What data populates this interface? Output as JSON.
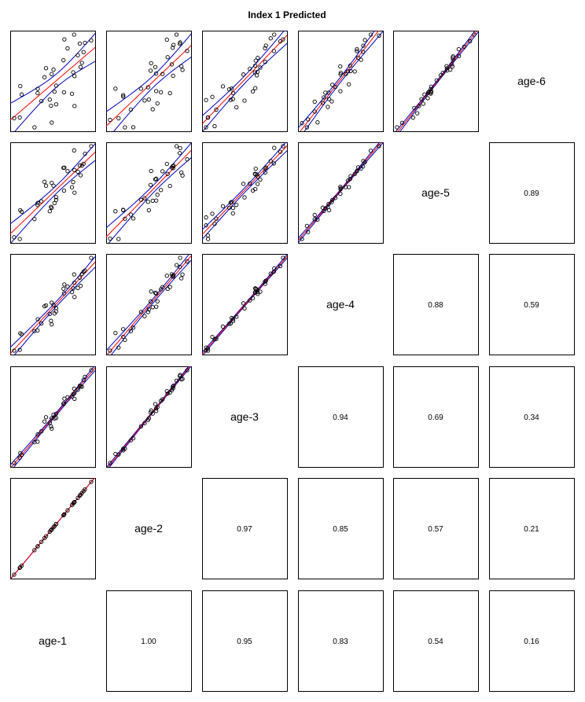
{
  "title": "Index 1 Predicted",
  "chart_data": {
    "type": "scatter",
    "title": "Index 1 Predicted",
    "variables": [
      "age-1",
      "age-2",
      "age-3",
      "age-4",
      "age-5",
      "age-6"
    ],
    "correlations": [
      {
        "row": "age-1",
        "col": "age-2",
        "value": "1.00"
      },
      {
        "row": "age-1",
        "col": "age-3",
        "value": "0.95"
      },
      {
        "row": "age-1",
        "col": "age-4",
        "value": "0.83"
      },
      {
        "row": "age-1",
        "col": "age-5",
        "value": "0.54"
      },
      {
        "row": "age-1",
        "col": "age-6",
        "value": "0.16"
      },
      {
        "row": "age-2",
        "col": "age-3",
        "value": "0.97"
      },
      {
        "row": "age-2",
        "col": "age-4",
        "value": "0.85"
      },
      {
        "row": "age-2",
        "col": "age-5",
        "value": "0.57"
      },
      {
        "row": "age-2",
        "col": "age-6",
        "value": "0.21"
      },
      {
        "row": "age-3",
        "col": "age-4",
        "value": "0.94"
      },
      {
        "row": "age-3",
        "col": "age-5",
        "value": "0.69"
      },
      {
        "row": "age-3",
        "col": "age-6",
        "value": "0.34"
      },
      {
        "row": "age-4",
        "col": "age-5",
        "value": "0.88"
      },
      {
        "row": "age-4",
        "col": "age-6",
        "value": "0.59"
      },
      {
        "row": "age-5",
        "col": "age-6",
        "value": "0.89"
      }
    ],
    "fit_line_color": "#ff0000",
    "confidence_band_color": "#0000c0",
    "point_stroke": "#000000"
  }
}
